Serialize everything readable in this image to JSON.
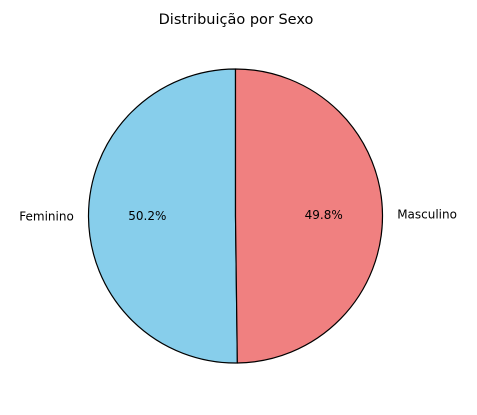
{
  "chart_data": {
    "type": "pie",
    "title": "Distribuição por Sexo",
    "slices": [
      {
        "label": "Feminino",
        "value": 50.2,
        "pct_label": "50.2%",
        "color": "#87CEEB"
      },
      {
        "label": "Masculino",
        "value": 49.8,
        "pct_label": "49.8%",
        "color": "#F08080"
      }
    ],
    "start_angle": "top",
    "direction": "counterclockwise",
    "edge_color": "#000000"
  }
}
